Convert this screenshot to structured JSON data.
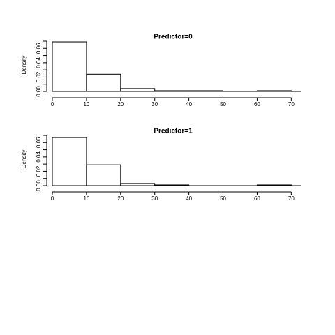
{
  "chart_data": [
    {
      "type": "histogram",
      "title": "Predictor=0",
      "ylabel": "Density",
      "bins": [
        0,
        10,
        20,
        30,
        40,
        50,
        60,
        70
      ],
      "values": [
        0.069,
        0.024,
        0.004,
        0.001,
        0.001,
        0,
        0.001
      ],
      "xlim": [
        0,
        73
      ],
      "xticks": [
        0,
        10,
        20,
        30,
        40,
        50,
        60,
        70
      ],
      "ylim": [
        0,
        0.07
      ],
      "yticks": [
        {
          "value": 0,
          "label": "0.00"
        },
        {
          "value": 0.02,
          "label": "0.02"
        },
        {
          "value": 0.04,
          "label": "0.04"
        },
        {
          "value": 0.06,
          "label": "0.06"
        }
      ],
      "yminor": [
        0.01,
        0.03,
        0.05,
        0.07
      ]
    },
    {
      "type": "histogram",
      "title": "Predictor=1",
      "ylabel": "Density",
      "bins": [
        0,
        10,
        20,
        30,
        40,
        50,
        60,
        70
      ],
      "values": [
        0.067,
        0.029,
        0.003,
        0.001,
        0,
        0,
        0.001
      ],
      "xlim": [
        0,
        73
      ],
      "xticks": [
        0,
        10,
        20,
        30,
        40,
        50,
        60,
        70
      ],
      "ylim": [
        0,
        0.07
      ],
      "yticks": [
        {
          "value": 0,
          "label": "0.00"
        },
        {
          "value": 0.02,
          "label": "0.02"
        },
        {
          "value": 0.04,
          "label": "0.04"
        },
        {
          "value": 0.06,
          "label": "0.06"
        }
      ],
      "yminor": [
        0.01,
        0.03,
        0.05,
        0.07
      ]
    }
  ]
}
